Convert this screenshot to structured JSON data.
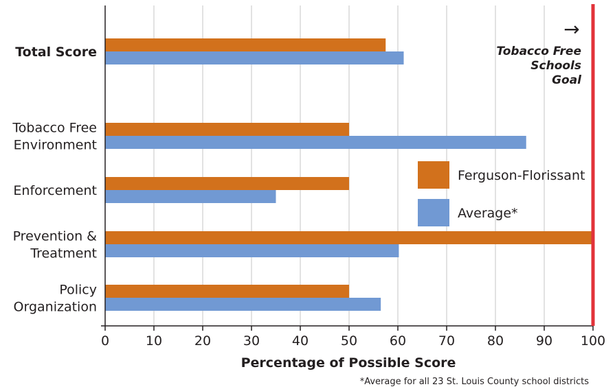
{
  "chart_data": {
    "type": "bar",
    "orientation": "horizontal",
    "title": "",
    "xlabel": "Percentage of Possible Score",
    "ylabel": "",
    "xlim": [
      0,
      100
    ],
    "xticks": [
      0,
      10,
      20,
      30,
      40,
      50,
      60,
      70,
      80,
      90,
      100
    ],
    "grid": true,
    "legend_position": "right",
    "categories": [
      {
        "label": "Total Score",
        "lines": [
          "Total Score"
        ],
        "bold": true
      },
      {
        "label": "Tobacco Free Environment",
        "lines": [
          "Tobacco Free",
          "Environment"
        ],
        "bold": false
      },
      {
        "label": "Enforcement",
        "lines": [
          "Enforcement"
        ],
        "bold": false
      },
      {
        "label": "Prevention & Treatment",
        "lines": [
          "Prevention &",
          "Treatment"
        ],
        "bold": false
      },
      {
        "label": "Policy Organization",
        "lines": [
          "Policy",
          "Organization"
        ],
        "bold": false
      }
    ],
    "series": [
      {
        "name": "Ferguson-Florissant",
        "color": "#d2711c",
        "values": [
          57.5,
          50,
          50,
          100,
          50
        ]
      },
      {
        "name": "Average*",
        "color": "#7199d3",
        "values": [
          61.2,
          86.3,
          35,
          60.2,
          56.5
        ]
      }
    ],
    "goal": {
      "value": 100,
      "color": "#e2333a",
      "arrow": "→",
      "label_lines": [
        "Tobacco Free",
        "Schools",
        "Goal"
      ]
    },
    "footnote": "*Average for all 23 St. Louis County school districts"
  }
}
